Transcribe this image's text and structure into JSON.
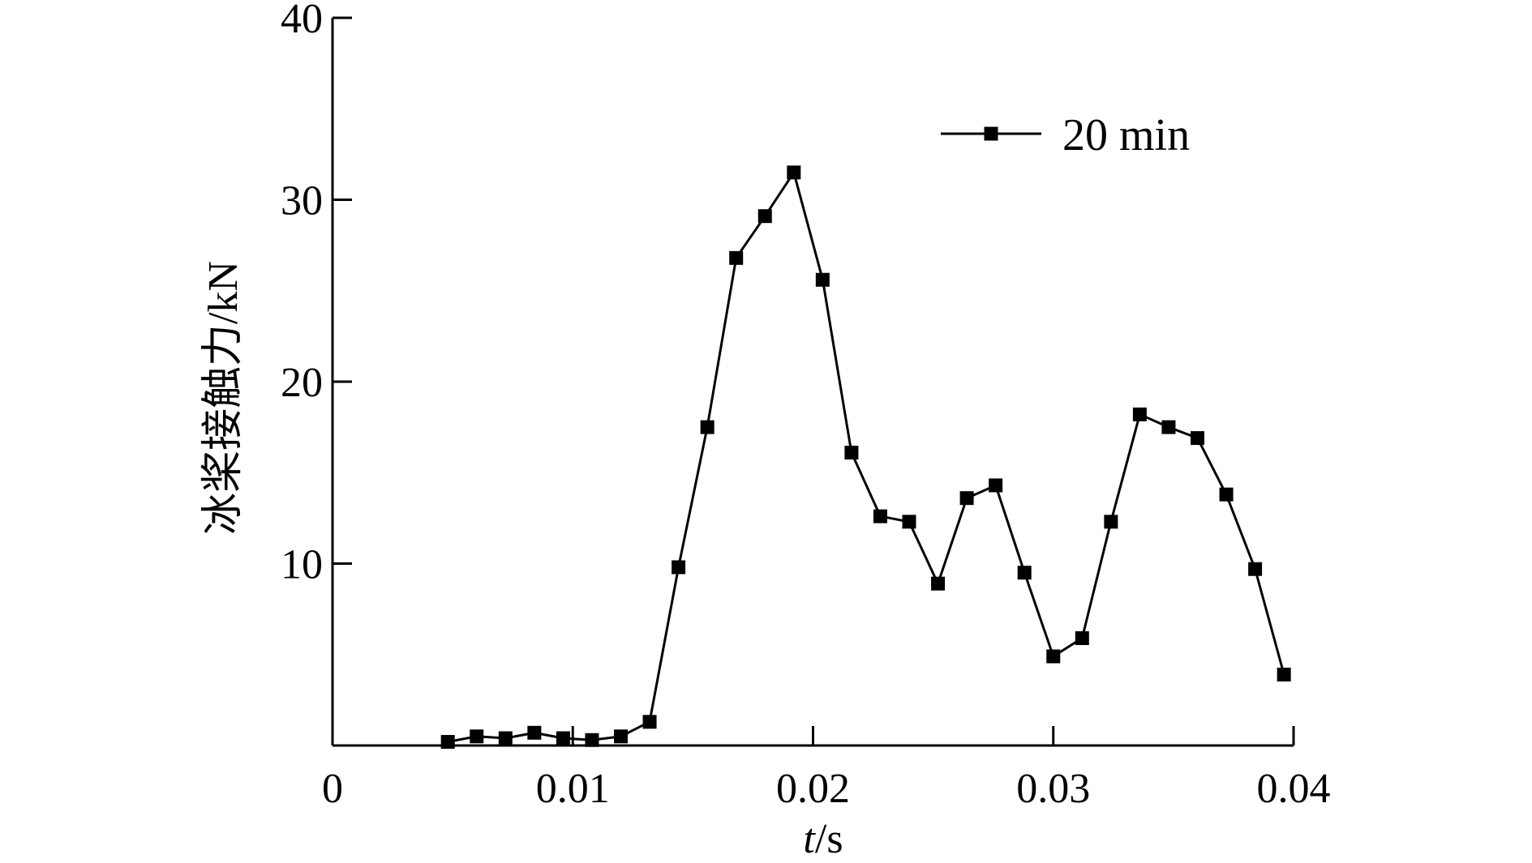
{
  "chart_data": {
    "type": "line",
    "xlabel_italic": "t",
    "xlabel_rest": "/s",
    "ylabel": "冰桨接触力/kN",
    "xlim": [
      0,
      0.04
    ],
    "ylim": [
      0,
      40
    ],
    "x_ticks": [
      {
        "value": 0,
        "label": "0"
      },
      {
        "value": 0.01,
        "label": "0.01"
      },
      {
        "value": 0.02,
        "label": "0.02"
      },
      {
        "value": 0.03,
        "label": "0.03"
      },
      {
        "value": 0.04,
        "label": "0.04"
      }
    ],
    "y_ticks": [
      {
        "value": 10,
        "label": "10"
      },
      {
        "value": 20,
        "label": "20"
      },
      {
        "value": 30,
        "label": "30"
      },
      {
        "value": 40,
        "label": "40"
      }
    ],
    "legend_position": "top-right",
    "grid": false,
    "series": [
      {
        "name": "20 min",
        "color": "#000000",
        "marker": "square",
        "x": [
          0.0048,
          0.006,
          0.0072,
          0.0084,
          0.0096,
          0.0108,
          0.012,
          0.0132,
          0.0144,
          0.0156,
          0.0168,
          0.018,
          0.0192,
          0.0204,
          0.0216,
          0.0228,
          0.024,
          0.0252,
          0.0264,
          0.0276,
          0.0288,
          0.03,
          0.0312,
          0.0324,
          0.0336,
          0.0348,
          0.036,
          0.0372,
          0.0384,
          0.0396
        ],
        "y": [
          0.2,
          0.5,
          0.4,
          0.7,
          0.4,
          0.3,
          0.5,
          1.3,
          9.8,
          17.5,
          26.8,
          29.1,
          31.5,
          25.6,
          16.1,
          12.6,
          12.3,
          8.9,
          13.6,
          14.3,
          9.5,
          4.9,
          5.9,
          12.3,
          18.2,
          17.5,
          16.9,
          13.8,
          9.7,
          3.9
        ]
      }
    ]
  }
}
